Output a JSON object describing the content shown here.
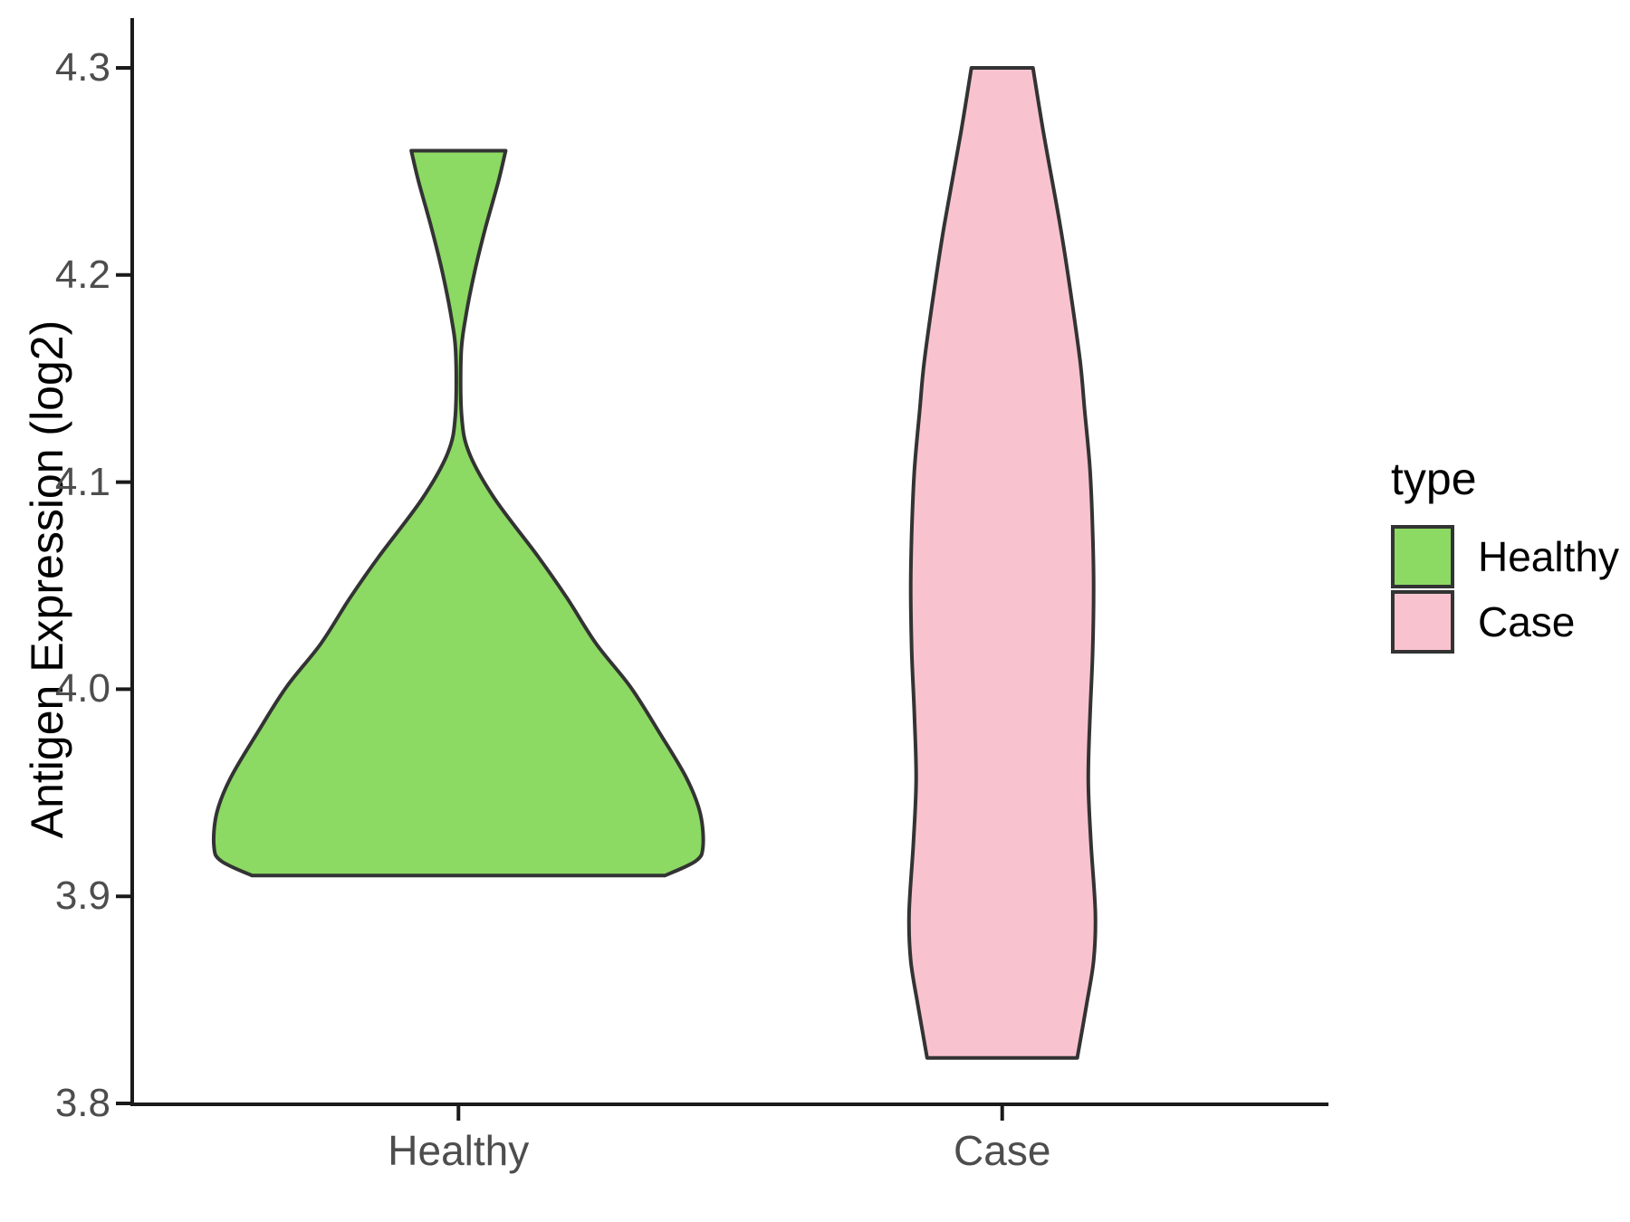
{
  "legend": {
    "title": "type",
    "entries": [
      {
        "label": "Healthy",
        "color": "#8CD964"
      },
      {
        "label": "Case",
        "color": "#F8C3CF"
      }
    ]
  },
  "colors": {
    "violin_stroke": "#333333",
    "axis_line": "#1a1a1a",
    "tick_text": "#4d4d4d",
    "title_text": "#000000",
    "background": "#ffffff"
  },
  "chart_data": {
    "type": "violin",
    "title": "",
    "xlabel": "",
    "ylabel": "Antigen Expression (log2)",
    "ylim": [
      3.8,
      4.3
    ],
    "yticks": [
      3.8,
      3.9,
      4.0,
      4.1,
      4.2,
      4.3
    ],
    "categories": [
      "Healthy",
      "Case"
    ],
    "grid": "off",
    "legend_position": "right",
    "series": [
      {
        "name": "Healthy",
        "fill": "#8CD964",
        "value_range": [
          3.91,
          4.26
        ],
        "profile": [
          {
            "v": 4.26,
            "w": 0.193
          },
          {
            "v": 4.245,
            "w": 0.163
          },
          {
            "v": 4.223,
            "w": 0.111
          },
          {
            "v": 4.202,
            "w": 0.067
          },
          {
            "v": 4.18,
            "w": 0.03
          },
          {
            "v": 4.162,
            "w": 0.011
          },
          {
            "v": 4.132,
            "w": 0.013
          },
          {
            "v": 4.114,
            "w": 0.044
          },
          {
            "v": 4.092,
            "w": 0.148
          },
          {
            "v": 4.064,
            "w": 0.326
          },
          {
            "v": 4.044,
            "w": 0.444
          },
          {
            "v": 4.022,
            "w": 0.563
          },
          {
            "v": 4.001,
            "w": 0.704
          },
          {
            "v": 3.979,
            "w": 0.822
          },
          {
            "v": 3.957,
            "w": 0.933
          },
          {
            "v": 3.94,
            "w": 0.989
          },
          {
            "v": 3.924,
            "w": 1.0
          },
          {
            "v": 3.917,
            "w": 0.97
          },
          {
            "v": 3.91,
            "w": 0.844
          }
        ]
      },
      {
        "name": "Case",
        "fill": "#F8C3CF",
        "value_range": [
          3.823,
          4.3
        ],
        "profile": [
          {
            "v": 4.3,
            "w": 0.126
          },
          {
            "v": 4.268,
            "w": 0.17
          },
          {
            "v": 4.224,
            "w": 0.237
          },
          {
            "v": 4.193,
            "w": 0.278
          },
          {
            "v": 4.158,
            "w": 0.319
          },
          {
            "v": 4.135,
            "w": 0.337
          },
          {
            "v": 4.106,
            "w": 0.359
          },
          {
            "v": 4.076,
            "w": 0.37
          },
          {
            "v": 4.049,
            "w": 0.374
          },
          {
            "v": 4.018,
            "w": 0.37
          },
          {
            "v": 3.987,
            "w": 0.359
          },
          {
            "v": 3.956,
            "w": 0.352
          },
          {
            "v": 3.926,
            "w": 0.363
          },
          {
            "v": 3.892,
            "w": 0.381
          },
          {
            "v": 3.869,
            "w": 0.374
          },
          {
            "v": 3.847,
            "w": 0.344
          },
          {
            "v": 3.822,
            "w": 0.307
          }
        ]
      }
    ]
  }
}
